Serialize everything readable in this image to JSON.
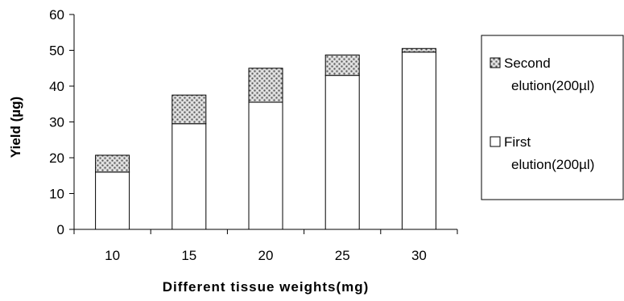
{
  "chart_data": {
    "type": "bar",
    "stacked": true,
    "categories": [
      "10",
      "15",
      "20",
      "25",
      "30"
    ],
    "series": [
      {
        "name": "First elution(200µl)",
        "values": [
          16,
          29.5,
          35.5,
          43,
          49.5
        ],
        "fill": "#ffffff",
        "pattern": "none"
      },
      {
        "name": "Second elution(200µl)",
        "values": [
          4.7,
          8,
          9.5,
          5.7,
          1
        ],
        "fill": "#c8c8c8",
        "pattern": "dotted-grey"
      }
    ],
    "xlabel": "Different tissue weights(mg)",
    "ylabel": "Yield (µg)",
    "ylim": [
      0,
      60
    ],
    "yticks": [
      "0",
      "10",
      "20",
      "30",
      "40",
      "50",
      "60"
    ],
    "grid": false,
    "legend_position": "right",
    "legend": {
      "entries": [
        {
          "series_index": 1,
          "lines": [
            "Second",
            "elution(200µl)"
          ]
        },
        {
          "series_index": 0,
          "lines": [
            "First",
            "elution(200µl)"
          ]
        }
      ]
    },
    "colors": {
      "axis": "#000000",
      "bar_outline": "#000000"
    }
  }
}
